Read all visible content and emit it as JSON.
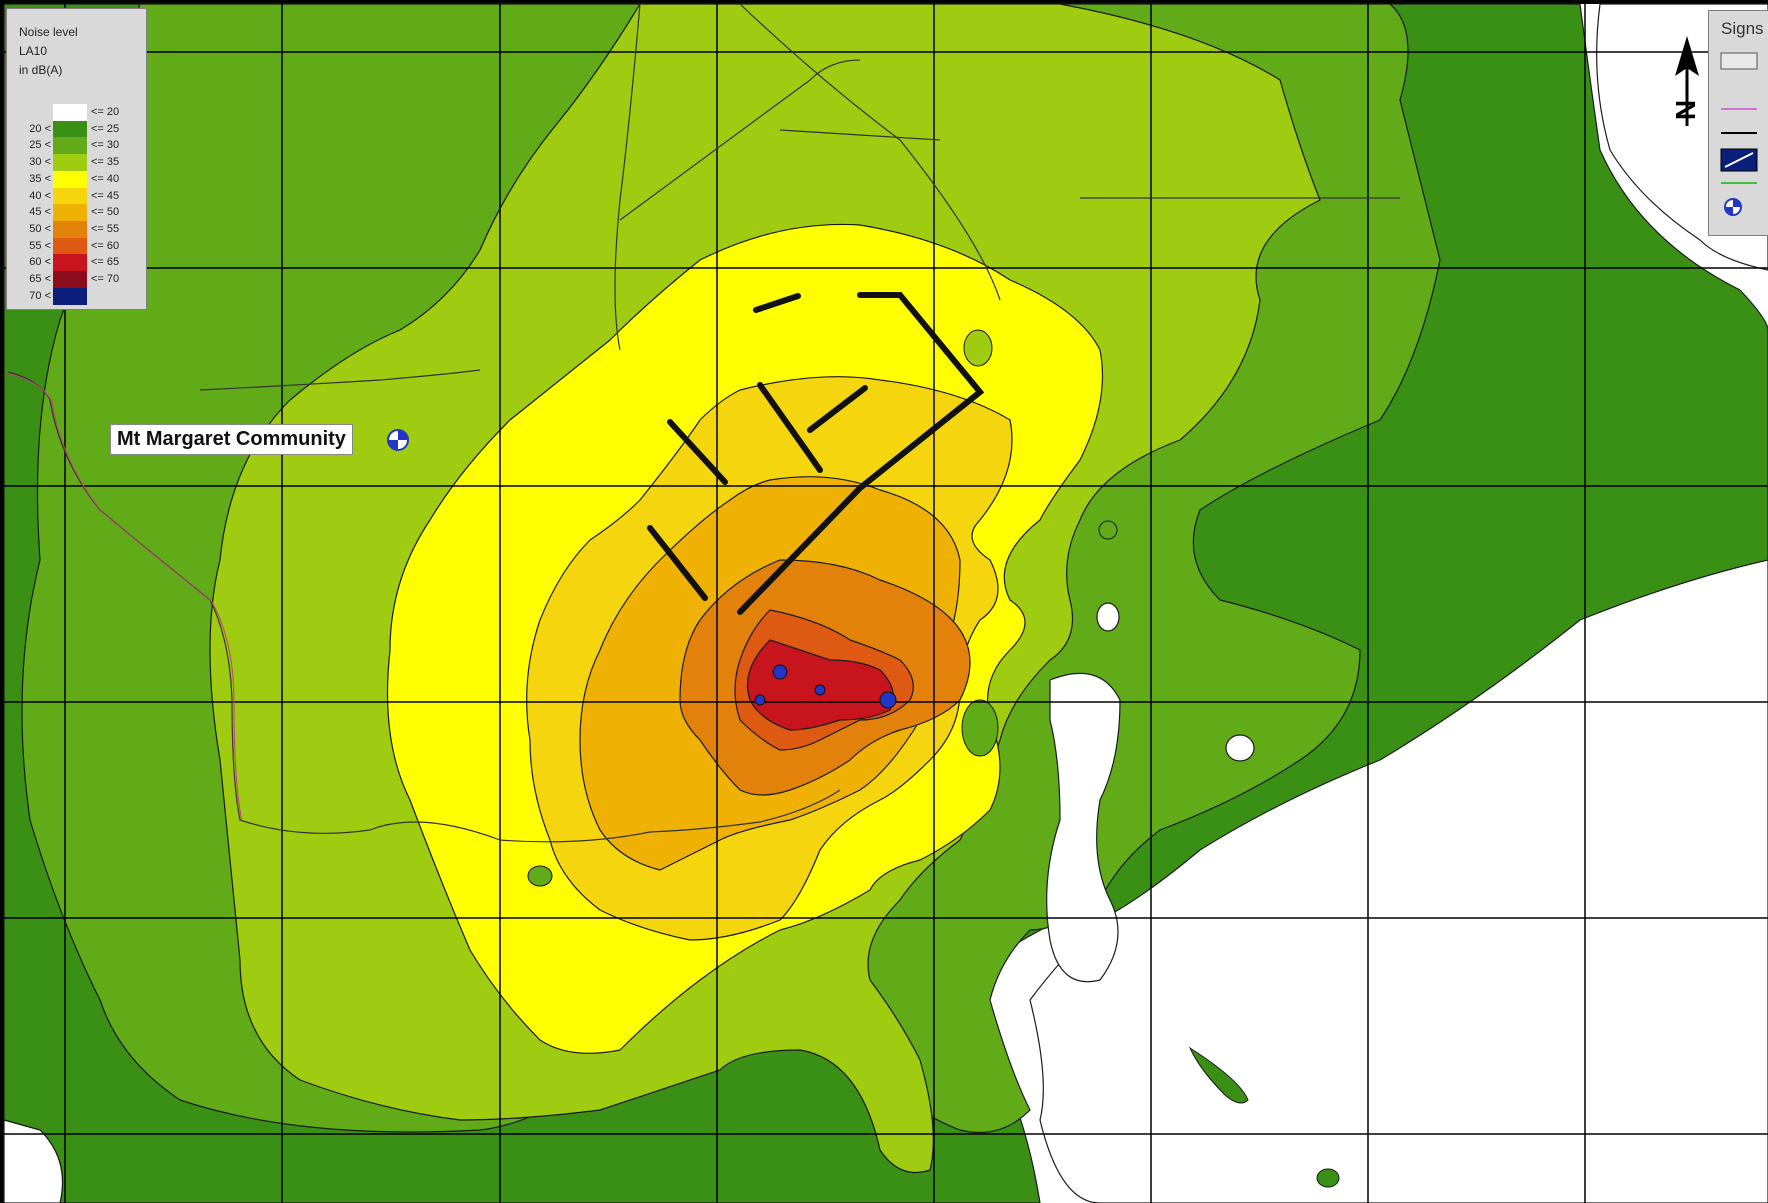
{
  "legend": {
    "title_lines": [
      "Noise level",
      "LA10",
      "in dB(A)"
    ],
    "bands": [
      {
        "lo": "",
        "hi": "<= 20",
        "color": "#ffffff"
      },
      {
        "lo": "20 <",
        "hi": "<= 25",
        "color": "#3a8f15"
      },
      {
        "lo": "25 <",
        "hi": "<= 30",
        "color": "#62ab18"
      },
      {
        "lo": "30 <",
        "hi": "<= 35",
        "color": "#9fcb10"
      },
      {
        "lo": "35 <",
        "hi": "<= 40",
        "color": "#ffff00"
      },
      {
        "lo": "40 <",
        "hi": "<= 45",
        "color": "#f5d60e"
      },
      {
        "lo": "45 <",
        "hi": "<= 50",
        "color": "#eeb104"
      },
      {
        "lo": "50 <",
        "hi": "<= 55",
        "color": "#e3820b"
      },
      {
        "lo": "55 <",
        "hi": "<= 60",
        "color": "#de5912"
      },
      {
        "lo": "60 <",
        "hi": "<= 65",
        "color": "#c8141c"
      },
      {
        "lo": "65 <",
        "hi": "<= 70",
        "color": "#8e0d1c"
      },
      {
        "lo": "70 <",
        "hi": "",
        "color": "#0b1f7a"
      }
    ]
  },
  "map": {
    "place_label": "Mt Margaret Community",
    "place_icon": "receiver-point-icon",
    "north_label": "N",
    "signs_title": "Signs"
  }
}
